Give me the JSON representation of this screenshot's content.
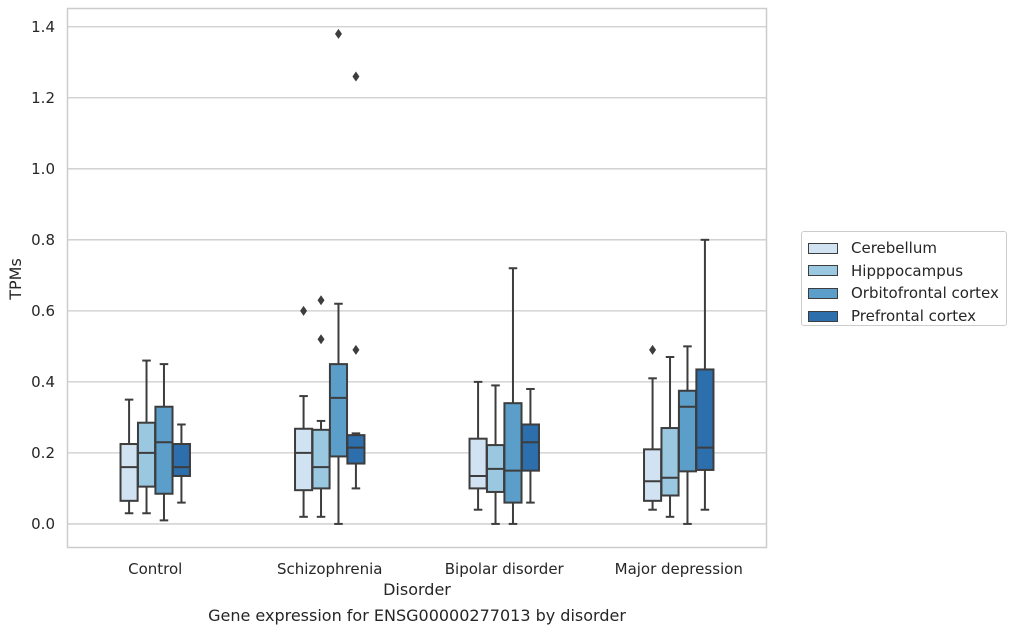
{
  "figure": {
    "caption": "Gene expression for ENSG00000277013 by disorder"
  },
  "chart_data": {
    "type": "box",
    "xlabel": "Disorder",
    "ylabel": "TPMs",
    "ylim": [
      -0.065,
      1.45
    ],
    "yticks": [
      0.0,
      0.2,
      0.4,
      0.6,
      0.8,
      1.0,
      1.2,
      1.4
    ],
    "ytick_labels": [
      "0.0",
      "0.2",
      "0.4",
      "0.6",
      "0.8",
      "1.0",
      "1.2",
      "1.4"
    ],
    "grid": true,
    "legend_position": "right, outside plot",
    "categories": [
      "Control",
      "Schizophrenia",
      "Bipolar disorder",
      "Major depression"
    ],
    "series": [
      {
        "name": "Cerebellum",
        "color": "#d1e2f2",
        "boxes": [
          {
            "whislo": 0.03,
            "q1": 0.065,
            "med": 0.16,
            "q3": 0.225,
            "whishi": 0.35,
            "fliers": []
          },
          {
            "whislo": 0.02,
            "q1": 0.095,
            "med": 0.2,
            "q3": 0.268,
            "whishi": 0.36,
            "fliers": [
              0.6
            ]
          },
          {
            "whislo": 0.04,
            "q1": 0.1,
            "med": 0.135,
            "q3": 0.24,
            "whishi": 0.4,
            "fliers": []
          },
          {
            "whislo": 0.04,
            "q1": 0.065,
            "med": 0.12,
            "q3": 0.21,
            "whishi": 0.41,
            "fliers": [
              0.49
            ]
          }
        ]
      },
      {
        "name": "Hipppocampus",
        "color": "#9ac8e0",
        "boxes": [
          {
            "whislo": 0.03,
            "q1": 0.105,
            "med": 0.2,
            "q3": 0.285,
            "whishi": 0.46,
            "fliers": []
          },
          {
            "whislo": 0.02,
            "q1": 0.1,
            "med": 0.16,
            "q3": 0.265,
            "whishi": 0.29,
            "fliers": [
              0.52,
              0.63
            ]
          },
          {
            "whislo": 0.0,
            "q1": 0.09,
            "med": 0.155,
            "q3": 0.222,
            "whishi": 0.39,
            "fliers": []
          },
          {
            "whislo": 0.02,
            "q1": 0.08,
            "med": 0.13,
            "q3": 0.27,
            "whishi": 0.47,
            "fliers": []
          }
        ]
      },
      {
        "name": "Orbitofrontal cortex",
        "color": "#5a9ec9",
        "boxes": [
          {
            "whislo": 0.01,
            "q1": 0.085,
            "med": 0.23,
            "q3": 0.33,
            "whishi": 0.45,
            "fliers": []
          },
          {
            "whislo": 0.0,
            "q1": 0.19,
            "med": 0.355,
            "q3": 0.45,
            "whishi": 0.62,
            "fliers": [
              1.38
            ]
          },
          {
            "whislo": 0.0,
            "q1": 0.06,
            "med": 0.15,
            "q3": 0.34,
            "whishi": 0.72,
            "fliers": []
          },
          {
            "whislo": 0.0,
            "q1": 0.148,
            "med": 0.33,
            "q3": 0.375,
            "whishi": 0.5,
            "fliers": []
          }
        ]
      },
      {
        "name": "Prefrontal cortex",
        "color": "#2d6ead",
        "boxes": [
          {
            "whislo": 0.06,
            "q1": 0.135,
            "med": 0.16,
            "q3": 0.225,
            "whishi": 0.28,
            "fliers": []
          },
          {
            "whislo": 0.1,
            "q1": 0.17,
            "med": 0.215,
            "q3": 0.25,
            "whishi": 0.255,
            "fliers": [
              0.49,
              1.26
            ]
          },
          {
            "whislo": 0.06,
            "q1": 0.15,
            "med": 0.23,
            "q3": 0.28,
            "whishi": 0.38,
            "fliers": []
          },
          {
            "whislo": 0.04,
            "q1": 0.152,
            "med": 0.215,
            "q3": 0.435,
            "whishi": 0.8,
            "fliers": []
          }
        ]
      }
    ]
  }
}
